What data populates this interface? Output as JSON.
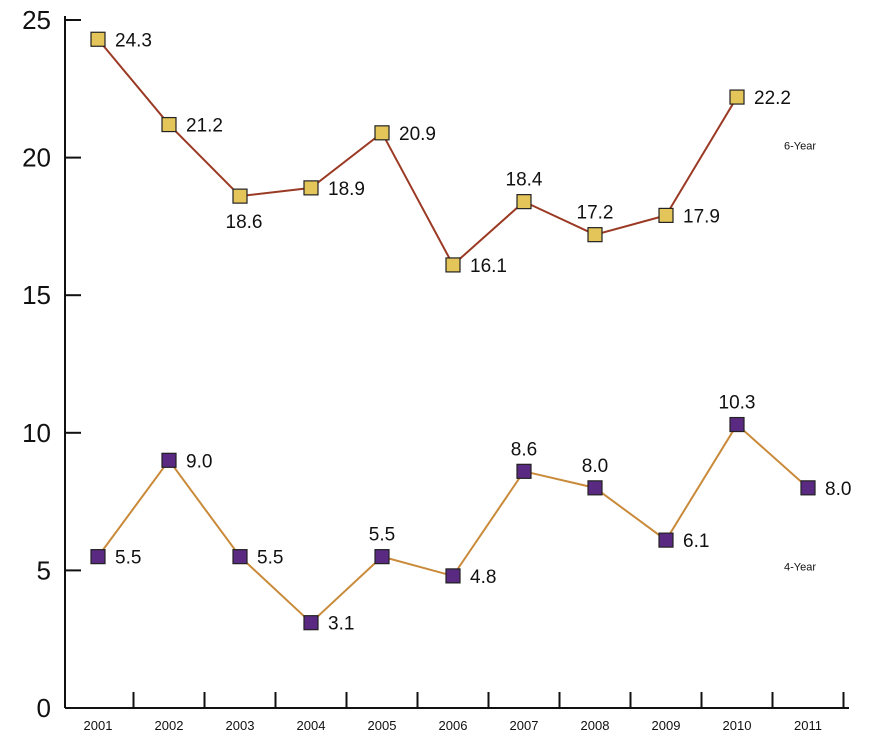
{
  "chart_data": {
    "type": "line",
    "x": [
      "2001",
      "2002",
      "2003",
      "2004",
      "2005",
      "2006",
      "2007",
      "2008",
      "2009",
      "2010",
      "2011"
    ],
    "ylim": [
      0,
      25
    ],
    "yticks": [
      0,
      5,
      10,
      15,
      20,
      25
    ],
    "grid": false,
    "title": "",
    "xlabel": "",
    "ylabel": "",
    "series": [
      {
        "name": "6-Year",
        "values": [
          24.3,
          21.2,
          18.6,
          18.9,
          20.9,
          16.1,
          18.4,
          17.2,
          17.9,
          22.2,
          null
        ],
        "labels": [
          "24.3",
          "21.2",
          "18.6",
          "18.9",
          "20.9",
          "16.1",
          "18.4",
          "17.2",
          "17.9",
          "22.2",
          null
        ],
        "line_color": "#9b3a24",
        "marker_color": "#e3c55a"
      },
      {
        "name": "4-Year",
        "values": [
          5.5,
          9.0,
          5.5,
          3.1,
          5.5,
          4.8,
          8.6,
          8.0,
          6.1,
          10.3,
          8.0
        ],
        "labels": [
          "5.5",
          "9.0",
          "5.5",
          "3.1",
          "5.5",
          "4.8",
          "8.6",
          "8.0",
          "6.1",
          "10.3",
          "8.0"
        ],
        "line_color": "#c98a3a",
        "marker_color": "#5a2a82"
      }
    ]
  }
}
